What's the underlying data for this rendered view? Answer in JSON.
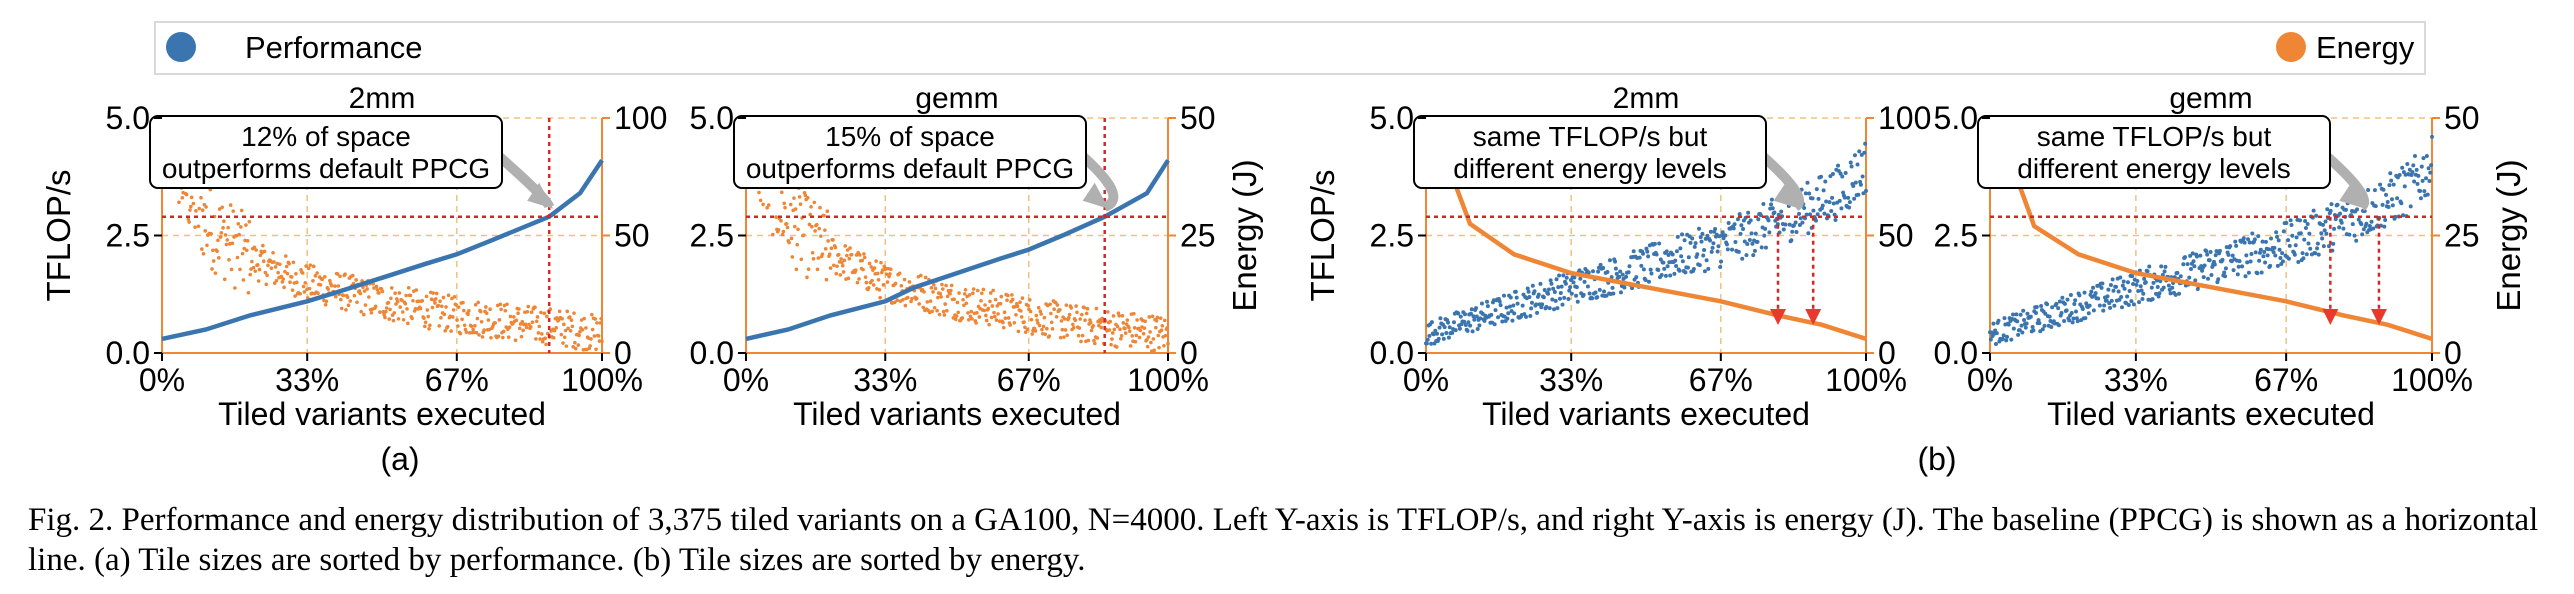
{
  "legend": {
    "performance_label": "Performance",
    "energy_label": "Energy",
    "performance_color": "#3b75af",
    "energy_color": "#ef8636"
  },
  "colors": {
    "baseline": "#d62728",
    "grid": "#f0c080",
    "annotation_arrow": "#b0b0b0",
    "marker": "#e8392c"
  },
  "panel_labels": [
    "(a)",
    "(b)"
  ],
  "caption": "Fig. 2.  Performance and energy distribution of 3,375 tiled variants on a GA100, N=4000. Left Y-axis is TFLOP/s, and right Y-axis is energy (J). The baseline (PPCG) is shown as a horizontal line. (a) Tile sizes are sorted by performance. (b) Tile sizes are sorted by energy.",
  "chart_data": [
    {
      "type": "scatter",
      "title": "2mm",
      "sorted_by": "performance",
      "xlabel": "Tiled variants executed",
      "ylabel_left": "TFLOP/s",
      "ylabel_right": "",
      "x_ticks": [
        "0%",
        "33%",
        "67%",
        "100%"
      ],
      "xlim": [
        0,
        100
      ],
      "ylim_left": [
        0,
        5.0
      ],
      "y_ticks_left": [
        "0.0",
        "2.5",
        "5.0"
      ],
      "ylim_right": [
        0,
        100
      ],
      "y_ticks_right": [
        "0",
        "50",
        "100"
      ],
      "baseline_tflops": 2.9,
      "baseline_x_percent": 88,
      "annotation": [
        "12% of space",
        "outperforms default PPCG"
      ],
      "series": [
        {
          "name": "Performance",
          "axis": "left",
          "x": [
            0,
            10,
            20,
            33,
            40,
            50,
            60,
            67,
            75,
            88,
            95,
            100
          ],
          "y": [
            0.3,
            0.5,
            0.8,
            1.1,
            1.3,
            1.6,
            1.9,
            2.1,
            2.4,
            2.9,
            3.4,
            4.1
          ]
        },
        {
          "name": "Energy",
          "axis": "right",
          "x": [
            0,
            2,
            5,
            10,
            20,
            33,
            50,
            67,
            80,
            90,
            100
          ],
          "y": [
            95,
            88,
            72,
            55,
            40,
            30,
            22,
            16,
            13,
            11,
            8
          ]
        }
      ]
    },
    {
      "type": "scatter",
      "title": "gemm",
      "sorted_by": "performance",
      "xlabel": "Tiled variants executed",
      "ylabel_left": "",
      "ylabel_right": "Energy (J)",
      "x_ticks": [
        "0%",
        "33%",
        "67%",
        "100%"
      ],
      "xlim": [
        0,
        100
      ],
      "ylim_left": [
        0,
        5.0
      ],
      "y_ticks_left": [
        "0.0",
        "2.5",
        "5.0"
      ],
      "ylim_right": [
        0,
        50
      ],
      "y_ticks_right": [
        "0",
        "25",
        "50"
      ],
      "baseline_tflops": 2.9,
      "baseline_x_percent": 85,
      "annotation": [
        "15% of space",
        "outperforms default PPCG"
      ],
      "series": [
        {
          "name": "Performance",
          "axis": "left",
          "x": [
            0,
            10,
            20,
            33,
            40,
            50,
            60,
            67,
            75,
            85,
            95,
            100
          ],
          "y": [
            0.3,
            0.5,
            0.8,
            1.1,
            1.4,
            1.7,
            2.0,
            2.2,
            2.5,
            2.9,
            3.4,
            4.1
          ]
        },
        {
          "name": "Energy",
          "axis": "right",
          "x": [
            0,
            2,
            5,
            10,
            20,
            33,
            50,
            67,
            80,
            90,
            100
          ],
          "y": [
            47,
            43,
            36,
            28,
            21,
            15,
            11,
            8,
            6,
            5,
            4
          ]
        }
      ]
    },
    {
      "type": "scatter",
      "title": "2mm",
      "sorted_by": "energy",
      "xlabel": "Tiled variants executed",
      "ylabel_left": "TFLOP/s",
      "ylabel_right": "",
      "x_ticks": [
        "0%",
        "33%",
        "67%",
        "100%"
      ],
      "xlim": [
        0,
        100
      ],
      "ylim_left": [
        0,
        5.0
      ],
      "y_ticks_left": [
        "0.0",
        "2.5",
        "5.0"
      ],
      "ylim_right": [
        0,
        100
      ],
      "y_ticks_right": [
        "0",
        "50",
        "100"
      ],
      "baseline_tflops": 2.9,
      "markers_x_percent": [
        80,
        88
      ],
      "annotation": [
        "same TFLOP/s but",
        "different energy levels"
      ],
      "series": [
        {
          "name": "Performance",
          "axis": "left",
          "x": [
            0,
            10,
            20,
            33,
            45,
            55,
            67,
            75,
            85,
            95,
            100
          ],
          "y": [
            0.4,
            0.7,
            1.0,
            1.4,
            1.7,
            2.0,
            2.3,
            2.6,
            3.0,
            3.5,
            4.0
          ]
        },
        {
          "name": "Energy",
          "axis": "right",
          "x": [
            0,
            5,
            10,
            20,
            33,
            50,
            67,
            80,
            90,
            100
          ],
          "y": [
            100,
            80,
            55,
            42,
            34,
            28,
            22,
            16,
            12,
            6
          ]
        }
      ]
    },
    {
      "type": "scatter",
      "title": "gemm",
      "sorted_by": "energy",
      "xlabel": "Tiled variants executed",
      "ylabel_left": "",
      "ylabel_right": "Energy (J)",
      "x_ticks": [
        "0%",
        "33%",
        "67%",
        "100%"
      ],
      "xlim": [
        0,
        100
      ],
      "ylim_left": [
        0,
        5.0
      ],
      "y_ticks_left": [
        "0.0",
        "2.5",
        "5.0"
      ],
      "ylim_right": [
        0,
        50
      ],
      "y_ticks_right": [
        "0",
        "25",
        "50"
      ],
      "baseline_tflops": 2.9,
      "markers_x_percent": [
        77,
        88
      ],
      "annotation": [
        "same TFLOP/s but",
        "different energy levels"
      ],
      "series": [
        {
          "name": "Performance",
          "axis": "left",
          "x": [
            0,
            10,
            20,
            33,
            45,
            55,
            67,
            75,
            85,
            95,
            100
          ],
          "y": [
            0.4,
            0.7,
            1.0,
            1.4,
            1.7,
            2.0,
            2.3,
            2.6,
            3.0,
            3.5,
            4.0
          ]
        },
        {
          "name": "Energy",
          "axis": "right",
          "x": [
            0,
            5,
            10,
            20,
            33,
            50,
            67,
            80,
            90,
            100
          ],
          "y": [
            50,
            40,
            27,
            21,
            17,
            14,
            11,
            8,
            6,
            3
          ]
        }
      ]
    }
  ]
}
